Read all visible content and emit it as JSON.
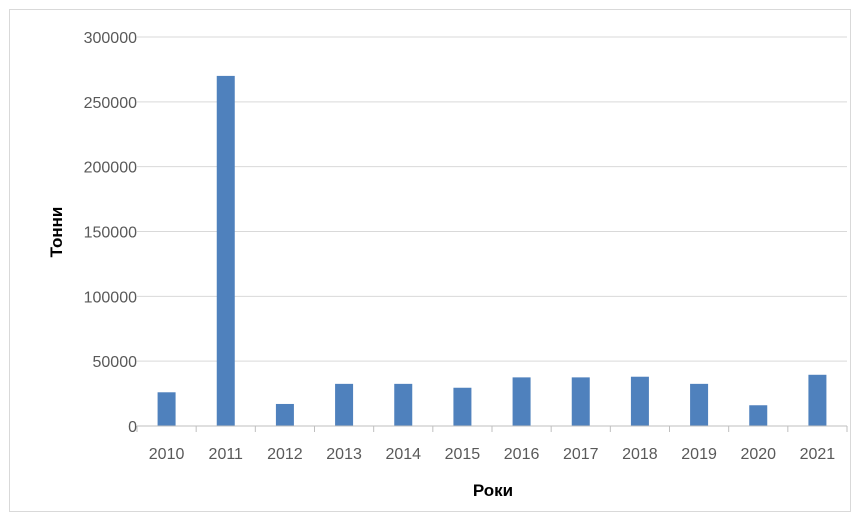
{
  "chart_data": {
    "type": "bar",
    "title": "",
    "xlabel": "Роки",
    "ylabel": "Тонни",
    "categories": [
      "2010",
      "2011",
      "2012",
      "2013",
      "2014",
      "2015",
      "2016",
      "2017",
      "2018",
      "2019",
      "2020",
      "2021"
    ],
    "series": [
      {
        "values": [
          26000,
          270000,
          17000,
          32500,
          32500,
          29500,
          37500,
          37500,
          38000,
          32500,
          16000,
          39500
        ]
      }
    ],
    "ylim": [
      0,
      300000
    ],
    "yticks": [
      "0",
      "50000",
      "100000",
      "150000",
      "200000",
      "250000",
      "300000"
    ],
    "grid": true,
    "legend": "none",
    "colors": {
      "bar": "#4f81bd",
      "grid": "#d9d9d9",
      "axis": "#bfbfbf",
      "tick_text": "#595959"
    }
  }
}
